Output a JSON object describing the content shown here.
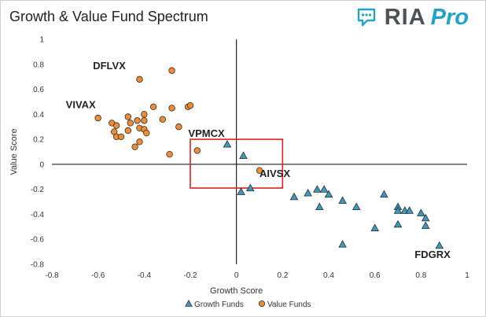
{
  "header": {
    "logo_ria": "RIA",
    "logo_pro": "Pro"
  },
  "colors": {
    "growth_fill": "#3a9bbf",
    "value_fill": "#f08c32",
    "marker_stroke": "#2b2b2b",
    "box": "#e0201f",
    "logo_text": "#4d5256",
    "logo_accent": "#1fa3c9"
  },
  "chart_data": {
    "type": "scatter",
    "title": "Growth & Value Fund Spectrum",
    "xlabel": "Growth Score",
    "ylabel": "Value Score",
    "xlim": [
      -0.8,
      1
    ],
    "ylim": [
      -0.8,
      1
    ],
    "xticks": [
      "-0.8",
      "-0.6",
      "-0.4",
      "-0.2",
      "0",
      "0.2",
      "0.4",
      "0.6",
      "0.8",
      "1"
    ],
    "yticks": [
      "1",
      "0.8",
      "0.6",
      "0.4",
      "0.2",
      "0",
      "-0.2",
      "-0.4",
      "-0.6",
      "-0.8"
    ],
    "grid": false,
    "legend_position": "bottom",
    "box": {
      "x0": -0.2,
      "x1": 0.2,
      "y0": -0.19,
      "y1": 0.2
    },
    "series": [
      {
        "name": "Growth Funds",
        "marker": "triangle",
        "points": [
          [
            -0.04,
            0.16
          ],
          [
            0.03,
            0.07
          ],
          [
            0.02,
            -0.22
          ],
          [
            0.06,
            -0.19
          ],
          [
            0.25,
            -0.26
          ],
          [
            0.31,
            -0.23
          ],
          [
            0.35,
            -0.2
          ],
          [
            0.38,
            -0.2
          ],
          [
            0.4,
            -0.24
          ],
          [
            0.36,
            -0.34
          ],
          [
            0.46,
            -0.29
          ],
          [
            0.52,
            -0.34
          ],
          [
            0.46,
            -0.64
          ],
          [
            0.6,
            -0.51
          ],
          [
            0.64,
            -0.24
          ],
          [
            0.7,
            -0.34
          ],
          [
            0.7,
            -0.37
          ],
          [
            0.73,
            -0.37
          ],
          [
            0.75,
            -0.37
          ],
          [
            0.7,
            -0.48
          ],
          [
            0.8,
            -0.39
          ],
          [
            0.82,
            -0.43
          ],
          [
            0.82,
            -0.49
          ],
          [
            0.88,
            -0.65
          ]
        ]
      },
      {
        "name": "Value Funds",
        "marker": "circle",
        "points": [
          [
            -0.42,
            0.68
          ],
          [
            -0.28,
            0.75
          ],
          [
            -0.6,
            0.37
          ],
          [
            -0.54,
            0.33
          ],
          [
            -0.52,
            0.31
          ],
          [
            -0.53,
            0.26
          ],
          [
            -0.52,
            0.22
          ],
          [
            -0.5,
            0.22
          ],
          [
            -0.47,
            0.27
          ],
          [
            -0.46,
            0.33
          ],
          [
            -0.47,
            0.38
          ],
          [
            -0.43,
            0.35
          ],
          [
            -0.42,
            0.29
          ],
          [
            -0.4,
            0.35
          ],
          [
            -0.4,
            0.4
          ],
          [
            -0.4,
            0.28
          ],
          [
            -0.39,
            0.25
          ],
          [
            -0.36,
            0.46
          ],
          [
            -0.32,
            0.36
          ],
          [
            -0.28,
            0.45
          ],
          [
            -0.25,
            0.3
          ],
          [
            -0.21,
            0.46
          ],
          [
            -0.2,
            0.47
          ],
          [
            -0.42,
            0.18
          ],
          [
            -0.44,
            0.14
          ],
          [
            -0.29,
            0.08
          ],
          [
            -0.17,
            0.11
          ],
          [
            0.1,
            -0.05
          ]
        ]
      }
    ],
    "annotations": [
      {
        "text": "DFLVX",
        "x": -0.48,
        "y": 0.76,
        "anchor": "end"
      },
      {
        "text": "VIVAX",
        "x": -0.61,
        "y": 0.45,
        "anchor": "end"
      },
      {
        "text": "VPMCX",
        "x": -0.13,
        "y": 0.22,
        "anchor": "middle"
      },
      {
        "text": "AIVSX",
        "x": 0.1,
        "y": -0.1,
        "anchor": "start"
      },
      {
        "text": "FDGRX",
        "x": 0.85,
        "y": -0.75,
        "anchor": "middle"
      }
    ]
  }
}
